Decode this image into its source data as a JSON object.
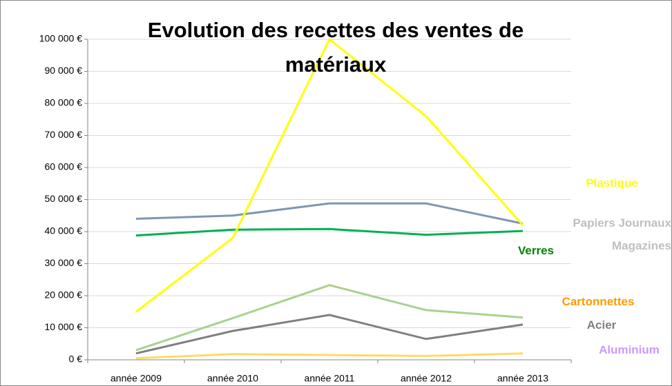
{
  "chart_data": {
    "type": "line",
    "title": "Evolution des recettes des ventes de matériaux",
    "categories": [
      "année 2009",
      "année 2010",
      "année 2011",
      "année 2012",
      "année 2013"
    ],
    "series": [
      {
        "name": "Papiers Journaux Magazines",
        "color": "#7f96b2",
        "label_color": "#bfbfbf",
        "values": [
          44000,
          45000,
          48800,
          48800,
          42500
        ]
      },
      {
        "name": "Verres",
        "color": "#00b050",
        "label_color": "#008000",
        "values": [
          38800,
          40600,
          40800,
          39000,
          40200
        ]
      },
      {
        "name": "Cartonnettes",
        "color": "#a9d18e",
        "label_color": "#ff9900",
        "values": [
          3000,
          13000,
          23300,
          15500,
          13200
        ]
      },
      {
        "name": "Acier",
        "color": "#7f7f7f",
        "label_color": "#7f7f7f",
        "values": [
          2000,
          9000,
          14000,
          6500,
          11000
        ]
      },
      {
        "name": "Aluminium",
        "color": "#ffd966",
        "label_color": "#cc99ff",
        "values": [
          500,
          1800,
          1500,
          1200,
          2000
        ]
      },
      {
        "name": "Plastique",
        "color": "#ffff00",
        "label_color": "#ffff00",
        "values": [
          15000,
          38000,
          100000,
          76000,
          42000
        ]
      }
    ],
    "ylim": [
      0,
      100000
    ],
    "yticks": [
      {
        "value": 0,
        "label": "0 €"
      },
      {
        "value": 10000,
        "label": "10 000 €"
      },
      {
        "value": 20000,
        "label": "20 000 €"
      },
      {
        "value": 30000,
        "label": "30 000 €"
      },
      {
        "value": 40000,
        "label": "40 000 €"
      },
      {
        "value": 50000,
        "label": "50 000 €"
      },
      {
        "value": 60000,
        "label": "60 000 €"
      },
      {
        "value": 70000,
        "label": "70 000 €"
      },
      {
        "value": 80000,
        "label": "80 000 €"
      },
      {
        "value": 90000,
        "label": "90 000 €"
      },
      {
        "value": 100000,
        "label": "100 000 €"
      }
    ],
    "grid": true
  }
}
